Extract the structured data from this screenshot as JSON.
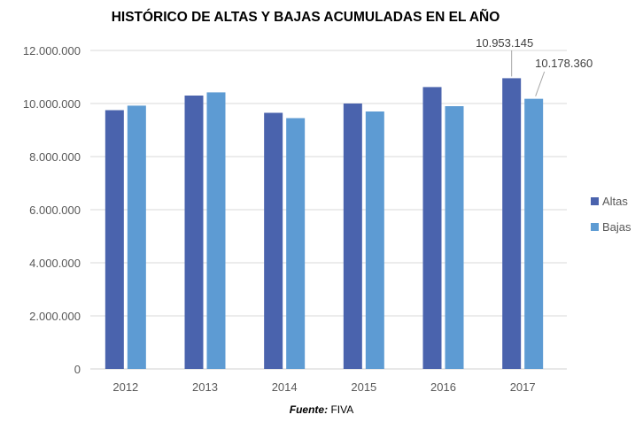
{
  "chart_data": {
    "type": "bar",
    "title": "HISTÓRICO DE ALTAS Y BAJAS ACUMULADAS EN EL AÑO",
    "categories": [
      "2012",
      "2013",
      "2014",
      "2015",
      "2016",
      "2017"
    ],
    "series": [
      {
        "name": "Altas",
        "color": "#4A63AD",
        "values": [
          9750000,
          10300000,
          9650000,
          10000000,
          10620000,
          10953145
        ]
      },
      {
        "name": "Bajas",
        "color": "#5D9BD3",
        "values": [
          9920000,
          10420000,
          9450000,
          9700000,
          9900000,
          10178360
        ]
      }
    ],
    "ylim": [
      0,
      12000000
    ],
    "yticks": [
      "0",
      "2.000.000",
      "4.000.000",
      "6.000.000",
      "8.000.000",
      "10.000.000",
      "12.000.000"
    ],
    "grid": true,
    "legend_position": "right",
    "data_labels": [
      {
        "series": "Altas",
        "category": "2017",
        "text": "10.953.145"
      },
      {
        "series": "Bajas",
        "category": "2017",
        "text": "10.178.360"
      }
    ]
  },
  "source": {
    "label": "Fuente:",
    "value": "FIVA"
  }
}
